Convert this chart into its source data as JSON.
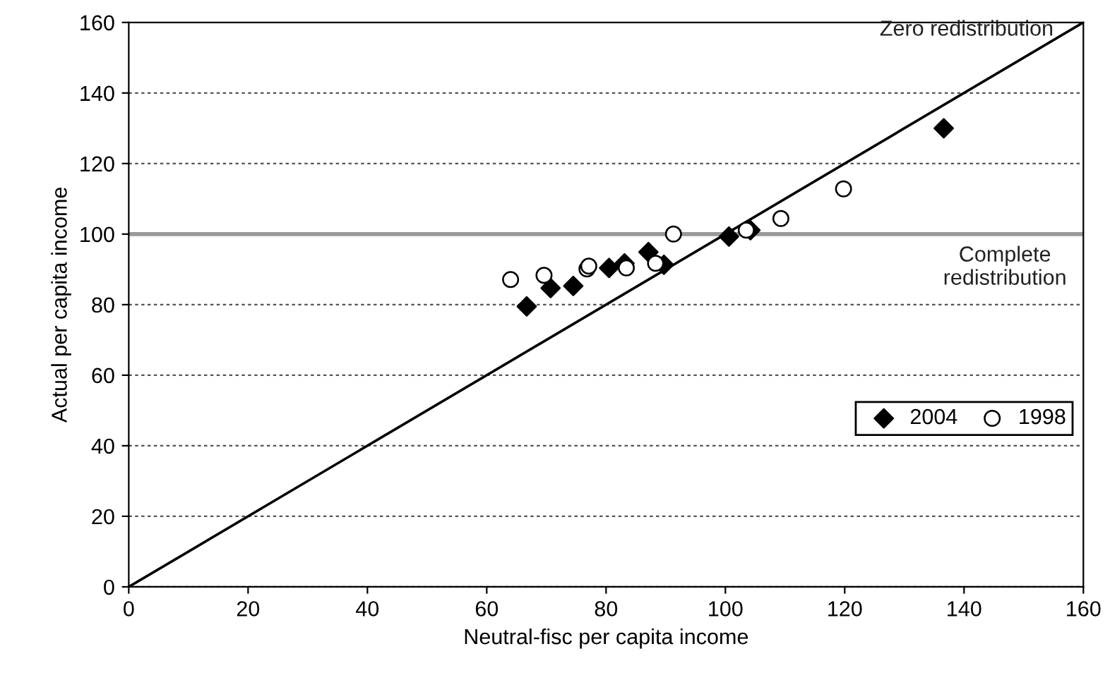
{
  "chart_data": {
    "type": "scatter",
    "xlabel": "Neutral-fisc per capita income",
    "ylabel": "Actual per capita income",
    "xlim": [
      0,
      160
    ],
    "ylim": [
      0,
      160
    ],
    "xticks": [
      0,
      20,
      40,
      60,
      80,
      100,
      120,
      140,
      160
    ],
    "yticks": [
      0,
      20,
      40,
      60,
      80,
      100,
      120,
      140,
      160
    ],
    "grid": "y",
    "legend": "bottom right",
    "series": [
      {
        "name": "2004",
        "color": "#000000",
        "marker": "diamond",
        "x": [
          66.7,
          70.7,
          74.5,
          80.5,
          83.1,
          87.1,
          89.7,
          100.6,
          104.2,
          136.6
        ],
        "values": [
          79.5,
          84.7,
          85.3,
          90.4,
          91.7,
          94.9,
          91.3,
          99.3,
          101.1,
          130
        ]
      },
      {
        "name": "1998",
        "color": "#000000",
        "marker": "circle",
        "x": [
          64,
          69.6,
          76.8,
          77.1,
          83.4,
          88.3,
          91.3,
          103.5,
          109.3,
          119.8
        ],
        "values": [
          87.1,
          88.3,
          90.1,
          90.9,
          90.4,
          91.7,
          100,
          101.1,
          104.4,
          112.8
        ]
      },
      {
        "type": "line",
        "color": "#000000",
        "x": [
          0,
          160
        ],
        "values": [
          0,
          160
        ]
      }
    ],
    "ref_lines": [
      {
        "axis": "y",
        "value": 100,
        "label": "Complete\nredistribution",
        "color": "#999999"
      }
    ],
    "annotations": [
      {
        "text": "Zero redistribution",
        "x": 155,
        "y": 155
      }
    ]
  }
}
